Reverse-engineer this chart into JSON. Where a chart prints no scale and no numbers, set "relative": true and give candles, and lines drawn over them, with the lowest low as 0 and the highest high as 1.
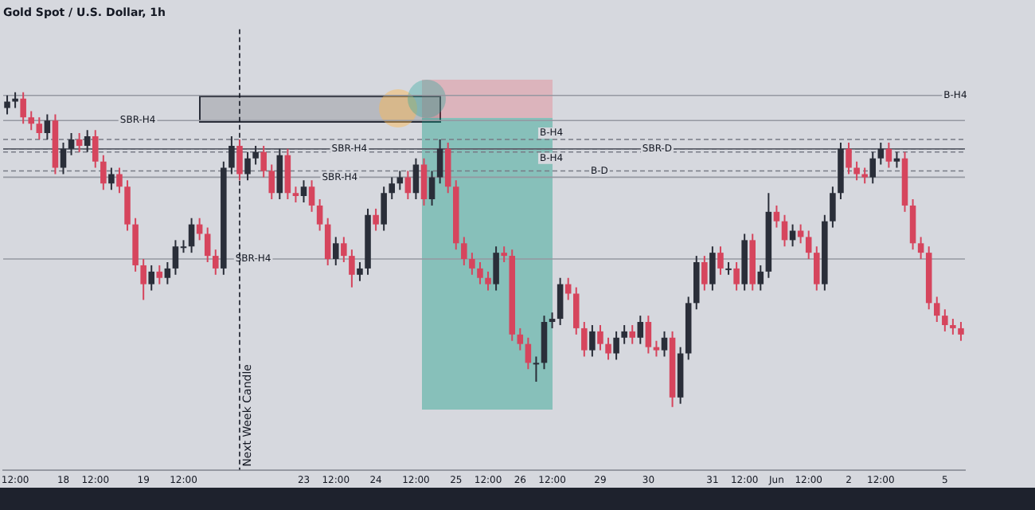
{
  "chart_data": {
    "type": "candlestick",
    "title": "Gold Spot / U.S. Dollar, 1h",
    "relative": true,
    "grid": false,
    "legend": false,
    "categories": [
      null,
      "12:00",
      null,
      null,
      null,
      null,
      null,
      "18",
      null,
      null,
      null,
      "12:00",
      null,
      null,
      null,
      null,
      null,
      "19",
      null,
      null,
      null,
      null,
      "12:00",
      null,
      null,
      null,
      null,
      null,
      null,
      null,
      null,
      null,
      null,
      null,
      null,
      null,
      null,
      "23",
      null,
      null,
      null,
      "12:00",
      null,
      null,
      null,
      null,
      "24",
      null,
      null,
      null,
      null,
      "12:00",
      null,
      null,
      null,
      null,
      "25",
      null,
      null,
      null,
      "12:00",
      null,
      null,
      null,
      "26",
      null,
      null,
      null,
      "12:00",
      null,
      null,
      null,
      null,
      null,
      "29",
      null,
      null,
      null,
      null,
      null,
      "30",
      null,
      null,
      null,
      null,
      null,
      null,
      null,
      "31",
      null,
      null,
      null,
      "12:00",
      null,
      null,
      null,
      "Jun",
      null,
      null,
      null,
      "12:00",
      null,
      null,
      null,
      null,
      "2",
      null,
      null,
      null,
      "12:00",
      null,
      null,
      null,
      null,
      null,
      null,
      null,
      "5",
      null,
      null
    ],
    "ohlc": [
      [
        0.95,
        0.99,
        0.93,
        0.97
      ],
      [
        0.97,
        1.0,
        0.95,
        0.98
      ],
      [
        0.98,
        1.0,
        0.9,
        0.92
      ],
      [
        0.92,
        0.94,
        0.88,
        0.9
      ],
      [
        0.9,
        0.92,
        0.85,
        0.87
      ],
      [
        0.87,
        0.93,
        0.85,
        0.91
      ],
      [
        0.91,
        0.93,
        0.74,
        0.76
      ],
      [
        0.76,
        0.84,
        0.74,
        0.82
      ],
      [
        0.82,
        0.87,
        0.8,
        0.85
      ],
      [
        0.85,
        0.87,
        0.81,
        0.83
      ],
      [
        0.83,
        0.88,
        0.81,
        0.86
      ],
      [
        0.86,
        0.88,
        0.76,
        0.78
      ],
      [
        0.78,
        0.8,
        0.69,
        0.71
      ],
      [
        0.71,
        0.76,
        0.69,
        0.74
      ],
      [
        0.74,
        0.76,
        0.68,
        0.7
      ],
      [
        0.7,
        0.72,
        0.56,
        0.58
      ],
      [
        0.58,
        0.6,
        0.43,
        0.45
      ],
      [
        0.45,
        0.47,
        0.34,
        0.39
      ],
      [
        0.39,
        0.45,
        0.37,
        0.43
      ],
      [
        0.43,
        0.45,
        0.39,
        0.41
      ],
      [
        0.41,
        0.46,
        0.39,
        0.44
      ],
      [
        0.44,
        0.53,
        0.42,
        0.51
      ],
      [
        0.51,
        0.53,
        0.49,
        0.51
      ],
      [
        0.51,
        0.6,
        0.49,
        0.58
      ],
      [
        0.58,
        0.6,
        0.53,
        0.55
      ],
      [
        0.55,
        0.57,
        0.46,
        0.48
      ],
      [
        0.48,
        0.5,
        0.42,
        0.44
      ],
      [
        0.44,
        0.78,
        0.42,
        0.76
      ],
      [
        0.76,
        0.86,
        0.74,
        0.83
      ],
      [
        0.83,
        0.85,
        0.72,
        0.74
      ],
      [
        0.74,
        0.81,
        0.72,
        0.79
      ],
      [
        0.79,
        0.83,
        0.77,
        0.81
      ],
      [
        0.81,
        0.83,
        0.73,
        0.75
      ],
      [
        0.75,
        0.77,
        0.66,
        0.68
      ],
      [
        0.68,
        0.82,
        0.66,
        0.8
      ],
      [
        0.8,
        0.82,
        0.66,
        0.68
      ],
      [
        0.68,
        0.7,
        0.65,
        0.67
      ],
      [
        0.67,
        0.72,
        0.65,
        0.7
      ],
      [
        0.7,
        0.72,
        0.62,
        0.64
      ],
      [
        0.64,
        0.66,
        0.56,
        0.58
      ],
      [
        0.58,
        0.6,
        0.45,
        0.47
      ],
      [
        0.47,
        0.54,
        0.45,
        0.52
      ],
      [
        0.52,
        0.54,
        0.46,
        0.48
      ],
      [
        0.48,
        0.5,
        0.38,
        0.42
      ],
      [
        0.42,
        0.46,
        0.4,
        0.44
      ],
      [
        0.44,
        0.63,
        0.42,
        0.61
      ],
      [
        0.61,
        0.63,
        0.56,
        0.58
      ],
      [
        0.58,
        0.7,
        0.56,
        0.68
      ],
      [
        0.68,
        0.73,
        0.66,
        0.71
      ],
      [
        0.71,
        0.75,
        0.69,
        0.73
      ],
      [
        0.73,
        0.75,
        0.66,
        0.68
      ],
      [
        0.68,
        0.79,
        0.66,
        0.77
      ],
      [
        0.77,
        0.79,
        0.64,
        0.66
      ],
      [
        0.66,
        0.75,
        0.64,
        0.73
      ],
      [
        0.73,
        0.85,
        0.71,
        0.82
      ],
      [
        0.82,
        0.84,
        0.68,
        0.7
      ],
      [
        0.7,
        0.72,
        0.5,
        0.52
      ],
      [
        0.52,
        0.54,
        0.45,
        0.47
      ],
      [
        0.47,
        0.49,
        0.42,
        0.44
      ],
      [
        0.44,
        0.46,
        0.39,
        0.41
      ],
      [
        0.41,
        0.43,
        0.37,
        0.39
      ],
      [
        0.39,
        0.51,
        0.37,
        0.49
      ],
      [
        0.49,
        0.51,
        0.46,
        0.48
      ],
      [
        0.48,
        0.5,
        0.21,
        0.23
      ],
      [
        0.23,
        0.25,
        0.18,
        0.2
      ],
      [
        0.2,
        0.22,
        0.12,
        0.14
      ],
      [
        0.14,
        0.16,
        0.08,
        0.14
      ],
      [
        0.14,
        0.29,
        0.12,
        0.27
      ],
      [
        0.27,
        0.3,
        0.25,
        0.28
      ],
      [
        0.28,
        0.41,
        0.26,
        0.39
      ],
      [
        0.39,
        0.41,
        0.34,
        0.36
      ],
      [
        0.36,
        0.38,
        0.23,
        0.25
      ],
      [
        0.25,
        0.27,
        0.16,
        0.18
      ],
      [
        0.18,
        0.26,
        0.16,
        0.24
      ],
      [
        0.24,
        0.26,
        0.18,
        0.2
      ],
      [
        0.2,
        0.22,
        0.15,
        0.17
      ],
      [
        0.17,
        0.24,
        0.15,
        0.22
      ],
      [
        0.22,
        0.26,
        0.2,
        0.24
      ],
      [
        0.24,
        0.26,
        0.2,
        0.22
      ],
      [
        0.22,
        0.29,
        0.2,
        0.27
      ],
      [
        0.27,
        0.29,
        0.17,
        0.19
      ],
      [
        0.19,
        0.21,
        0.16,
        0.18
      ],
      [
        0.18,
        0.24,
        0.16,
        0.22
      ],
      [
        0.22,
        0.24,
        0.0,
        0.03
      ],
      [
        0.03,
        0.19,
        0.01,
        0.17
      ],
      [
        0.17,
        0.35,
        0.15,
        0.33
      ],
      [
        0.33,
        0.48,
        0.31,
        0.46
      ],
      [
        0.46,
        0.48,
        0.37,
        0.39
      ],
      [
        0.39,
        0.51,
        0.37,
        0.49
      ],
      [
        0.49,
        0.51,
        0.42,
        0.44
      ],
      [
        0.44,
        0.46,
        0.42,
        0.44
      ],
      [
        0.44,
        0.46,
        0.37,
        0.39
      ],
      [
        0.39,
        0.55,
        0.37,
        0.53
      ],
      [
        0.53,
        0.55,
        0.37,
        0.39
      ],
      [
        0.39,
        0.45,
        0.37,
        0.43
      ],
      [
        0.43,
        0.68,
        0.41,
        0.62
      ],
      [
        0.62,
        0.64,
        0.57,
        0.59
      ],
      [
        0.59,
        0.61,
        0.51,
        0.53
      ],
      [
        0.53,
        0.58,
        0.51,
        0.56
      ],
      [
        0.56,
        0.58,
        0.52,
        0.54
      ],
      [
        0.54,
        0.56,
        0.47,
        0.49
      ],
      [
        0.49,
        0.51,
        0.37,
        0.39
      ],
      [
        0.39,
        0.61,
        0.37,
        0.59
      ],
      [
        0.59,
        0.7,
        0.57,
        0.68
      ],
      [
        0.68,
        0.84,
        0.66,
        0.82
      ],
      [
        0.82,
        0.84,
        0.74,
        0.76
      ],
      [
        0.76,
        0.78,
        0.72,
        0.74
      ],
      [
        0.74,
        0.76,
        0.71,
        0.73
      ],
      [
        0.73,
        0.81,
        0.71,
        0.79
      ],
      [
        0.79,
        0.84,
        0.77,
        0.82
      ],
      [
        0.82,
        0.84,
        0.76,
        0.78
      ],
      [
        0.78,
        0.81,
        0.76,
        0.79
      ],
      [
        0.79,
        0.81,
        0.62,
        0.64
      ],
      [
        0.64,
        0.66,
        0.5,
        0.52
      ],
      [
        0.52,
        0.54,
        0.47,
        0.49
      ],
      [
        0.49,
        0.51,
        0.31,
        0.33
      ],
      [
        0.33,
        0.35,
        0.27,
        0.29
      ],
      [
        0.29,
        0.31,
        0.24,
        0.26
      ],
      [
        0.26,
        0.28,
        0.23,
        0.25
      ],
      [
        0.25,
        0.27,
        0.21,
        0.23
      ]
    ],
    "ref_lines": [
      {
        "axis": "y",
        "value": 0.99,
        "label": "B-H4",
        "line_style": "solid",
        "color": "#9598a1"
      },
      {
        "axis": "y",
        "value": 0.91,
        "label": "SBR-H4",
        "line_style": "solid",
        "color": "#9598a1"
      },
      {
        "axis": "y",
        "value": 0.85,
        "label": "B-H4",
        "line_style": "dashed",
        "color": "#787b86"
      },
      {
        "axis": "y",
        "value": 0.82,
        "label": "SBR-H4",
        "line_style": "dashed",
        "color": "#787b86"
      },
      {
        "axis": "y",
        "value": 0.82,
        "label": "SBR-D",
        "line_style": "solid",
        "color": "#5d606b"
      },
      {
        "axis": "y",
        "value": 0.81,
        "label": "B-H4",
        "line_style": "dashed",
        "color": "#787b86"
      },
      {
        "axis": "y",
        "value": 0.75,
        "label": "B-D",
        "line_style": "dashed",
        "color": "#787b86"
      },
      {
        "axis": "y",
        "value": 0.73,
        "label": "SBR-H4",
        "line_style": "solid",
        "color": "#9598a1"
      },
      {
        "axis": "y",
        "value": 0.47,
        "label": "SBR-H4",
        "line_style": "solid",
        "color": "#9598a1"
      }
    ],
    "annotations": [
      "Next Week Candle"
    ]
  }
}
